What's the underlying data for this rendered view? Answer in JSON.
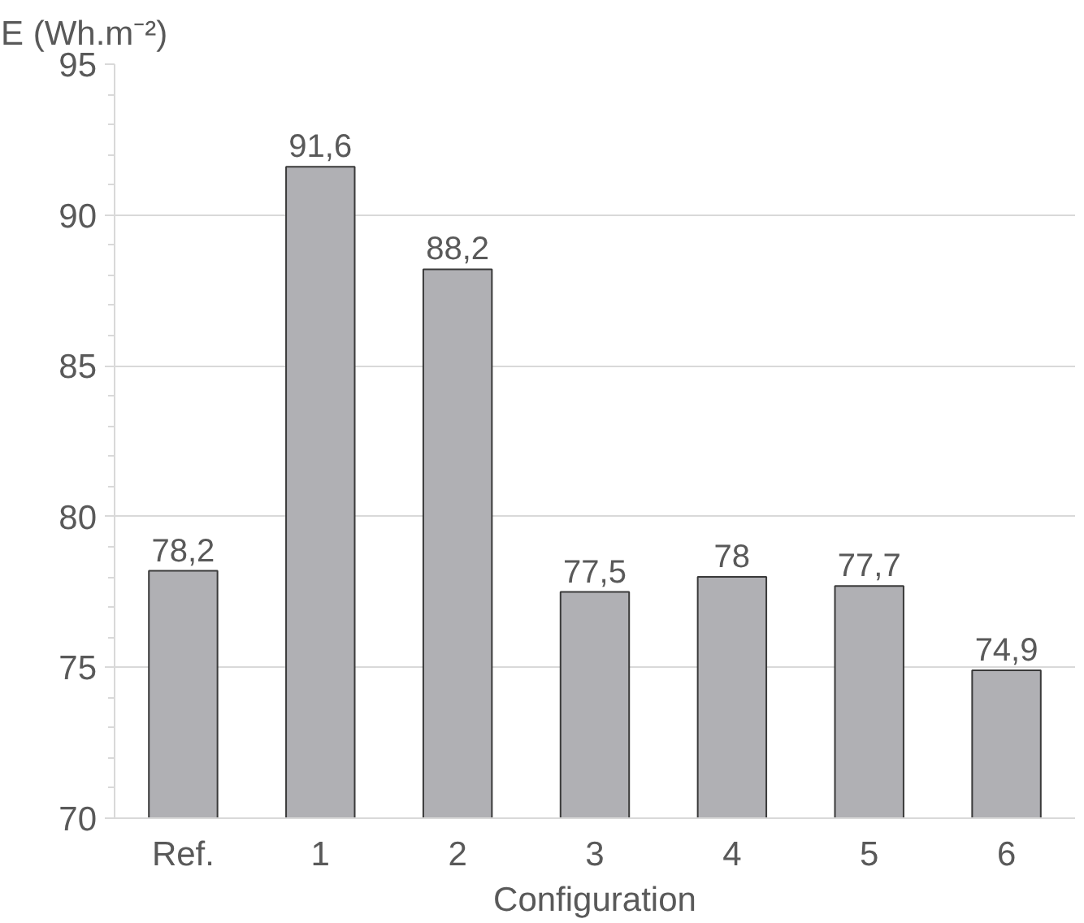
{
  "chart_data": {
    "type": "bar",
    "ylabel": "E (Wh.m⁻²)",
    "xlabel": "Configuration",
    "categories": [
      "Ref.",
      "1",
      "2",
      "3",
      "4",
      "5",
      "6"
    ],
    "values": [
      78.2,
      91.6,
      88.2,
      77.5,
      78,
      77.7,
      74.9
    ],
    "value_labels": [
      "78,2",
      "91,6",
      "88,2",
      "77,5",
      "78",
      "77,7",
      "74,9"
    ],
    "color": "#b0b0b4",
    "ylim": [
      70,
      95
    ],
    "yticks": [
      70,
      75,
      80,
      85,
      90,
      95
    ],
    "grid": "y"
  }
}
